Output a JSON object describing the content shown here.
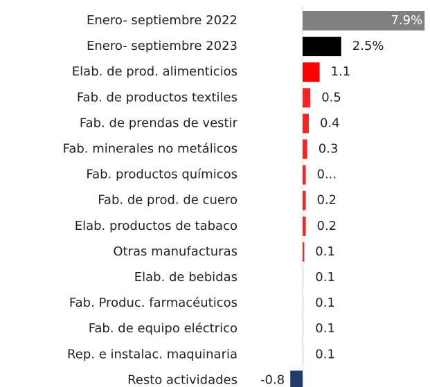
{
  "chart_data": {
    "type": "hbar",
    "categories": [
      "Enero- septiembre 2022",
      "Enero- septiembre 2023",
      "Elab. de prod. alimenticios",
      "Fab. de productos textiles",
      "Fab. de prendas de vestir",
      "Fab. minerales no metálicos",
      "Fab. productos químicos",
      "Fab. de prod. de cuero",
      "Elab. productos de tabaco",
      "Otras manufacturas",
      "Elab. de bebidas",
      "Fab. Produc. farmacéuticos",
      "Fab. de equipo eléctrico",
      "Rep. e instalac. maquinaria",
      "Resto actividades"
    ],
    "values": [
      7.9,
      2.5,
      1.1,
      0.5,
      0.4,
      0.3,
      0.2,
      0.2,
      0.2,
      0.1,
      0.1,
      0.1,
      0.1,
      0.1,
      -0.8
    ],
    "value_labels": [
      "7.9%",
      "2.5%",
      "1.1",
      "0.5",
      "0.4",
      "0.3",
      "0...",
      "0.2",
      "0.2",
      "0.1",
      "0.1",
      "0.1",
      "0.1",
      "0.1",
      "-0.8"
    ],
    "colors": [
      "#808080",
      "#000000",
      "#ff0000",
      "#ff2020",
      "#ff2020",
      "#ff2020",
      "#ff2020",
      "#ff2020",
      "#ff2020",
      "#ff2020",
      "#eeeeee",
      "#eeeeee",
      "#eeeeee",
      "#eeeeee",
      "#1f3d6b"
    ],
    "xlim": [
      -19.6,
      8.25
    ]
  }
}
